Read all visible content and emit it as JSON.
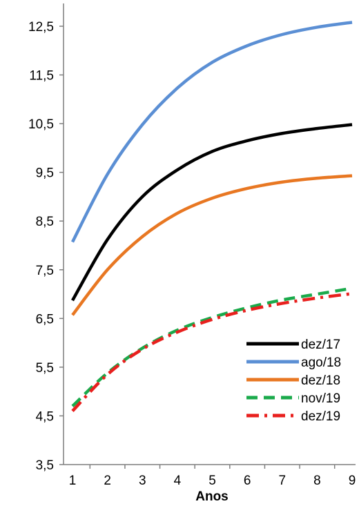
{
  "chart_data": {
    "type": "line",
    "title": "",
    "xlabel": "Anos",
    "ylabel": "",
    "x": [
      1,
      2,
      3,
      4,
      5,
      6,
      7,
      8,
      9
    ],
    "x_tick_labels": [
      "1",
      "2",
      "3",
      "4",
      "5",
      "6",
      "7",
      "8",
      "9"
    ],
    "ylim": [
      3.5,
      12.5
    ],
    "y_ticks": [
      3.5,
      4.5,
      5.5,
      6.5,
      7.5,
      8.5,
      9.5,
      10.5,
      11.5,
      12.5
    ],
    "y_tick_labels": [
      "3,5",
      "4,5",
      "5,5",
      "6,5",
      "7,5",
      "8,5",
      "9,5",
      "10,5",
      "11,5",
      "12,5"
    ],
    "grid": false,
    "legend_position": "bottom-right",
    "series": [
      {
        "name": "dez/17",
        "color": "#000000",
        "dash": "solid",
        "values": [
          6.87,
          8.12,
          9.0,
          9.55,
          9.93,
          10.15,
          10.3,
          10.4,
          10.48
        ]
      },
      {
        "name": "ago/18",
        "color": "#5b8fd4",
        "dash": "solid",
        "values": [
          8.07,
          9.46,
          10.48,
          11.23,
          11.76,
          12.1,
          12.33,
          12.48,
          12.58
        ]
      },
      {
        "name": "dez/18",
        "color": "#e87722",
        "dash": "solid",
        "values": [
          6.57,
          7.5,
          8.18,
          8.66,
          8.97,
          9.17,
          9.3,
          9.38,
          9.43
        ]
      },
      {
        "name": "nov/19",
        "color": "#1aaa4b",
        "dash": "dash",
        "values": [
          4.7,
          5.38,
          5.89,
          6.26,
          6.52,
          6.72,
          6.88,
          7.0,
          7.12
        ]
      },
      {
        "name": "dez/19",
        "color": "#e8201e",
        "dash": "dashdot",
        "values": [
          4.6,
          5.35,
          5.87,
          6.22,
          6.48,
          6.67,
          6.81,
          6.92,
          7.01
        ]
      }
    ]
  }
}
